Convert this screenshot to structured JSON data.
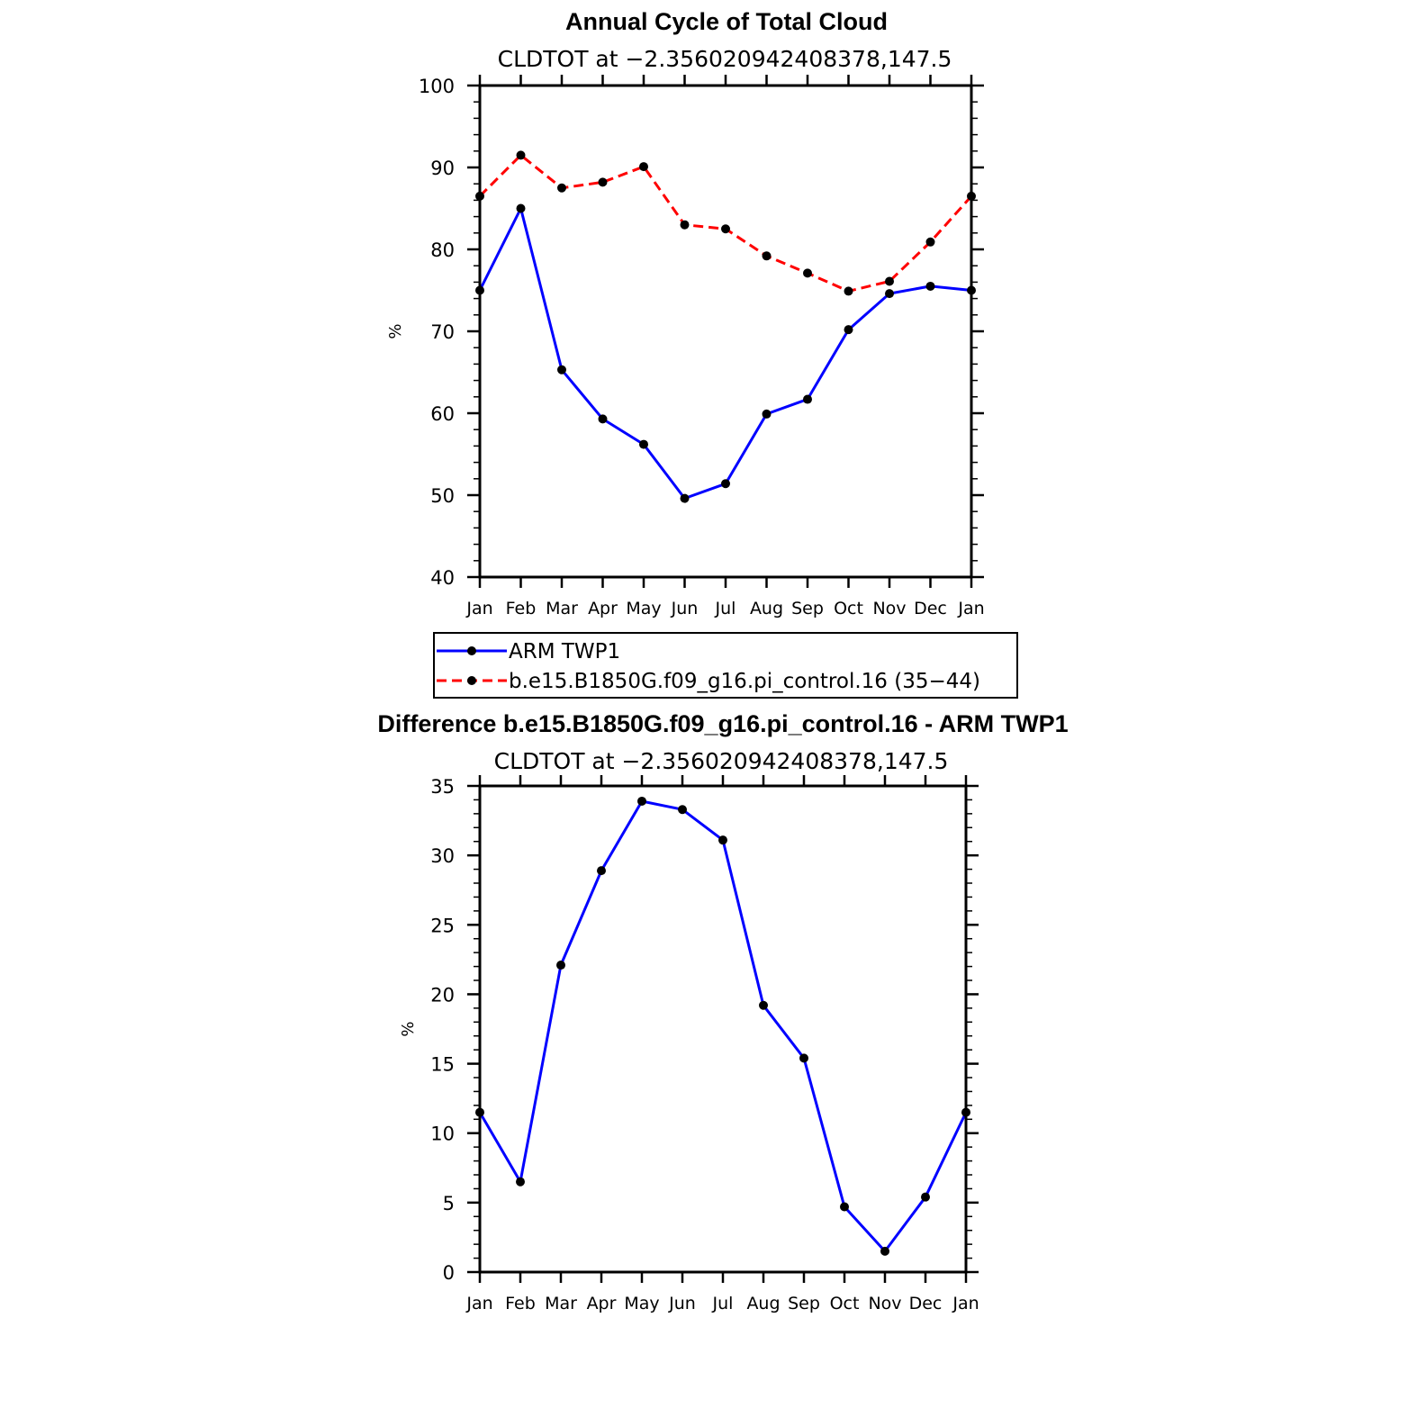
{
  "chart_data": [
    {
      "type": "line",
      "title": "Annual Cycle of Total Cloud",
      "subtitle": "CLDTOT at −2.356020942408378,147.5",
      "ylabel": "%",
      "xlabel": "",
      "ylim": [
        40,
        100
      ],
      "yticks": [
        "40",
        "50",
        "60",
        "70",
        "80",
        "90",
        "100"
      ],
      "categories": [
        "Jan",
        "Feb",
        "Mar",
        "Apr",
        "May",
        "Jun",
        "Jul",
        "Aug",
        "Sep",
        "Oct",
        "Nov",
        "Dec",
        "Jan"
      ],
      "series": [
        {
          "name": "ARM  TWP1",
          "color": "#0000ff",
          "dash": "solid",
          "values": [
            75.0,
            85.0,
            65.3,
            59.3,
            56.2,
            49.6,
            51.4,
            59.9,
            61.7,
            70.2,
            74.6,
            75.5,
            75.0
          ]
        },
        {
          "name": "b.e15.B1850G.f09_g16.pi_control.16 (35−44)",
          "color": "#ff0000",
          "dash": "dashed",
          "values": [
            86.5,
            91.5,
            87.5,
            88.2,
            90.1,
            83.0,
            82.5,
            79.2,
            77.1,
            74.9,
            76.1,
            80.9,
            86.5
          ]
        }
      ],
      "legend": [
        "ARM  TWP1",
        "b.e15.B1850G.f09_g16.pi_control.16 (35−44)"
      ],
      "legend_position": "below"
    },
    {
      "type": "line",
      "title": "Difference b.e15.B1850G.f09_g16.pi_control.16 - ARM TWP1",
      "subtitle": "CLDTOT at −2.356020942408378,147.5",
      "ylabel": "%",
      "xlabel": "",
      "ylim": [
        0,
        35
      ],
      "yticks": [
        "0",
        "5",
        "10",
        "15",
        "20",
        "25",
        "30",
        "35"
      ],
      "categories": [
        "Jan",
        "Feb",
        "Mar",
        "Apr",
        "May",
        "Jun",
        "Jul",
        "Aug",
        "Sep",
        "Oct",
        "Nov",
        "Dec",
        "Jan"
      ],
      "series": [
        {
          "name": "Difference",
          "color": "#0000ff",
          "dash": "solid",
          "values": [
            11.5,
            6.5,
            22.1,
            28.9,
            33.9,
            33.3,
            31.1,
            19.2,
            15.4,
            4.7,
            1.5,
            5.4,
            11.5
          ]
        }
      ]
    }
  ]
}
